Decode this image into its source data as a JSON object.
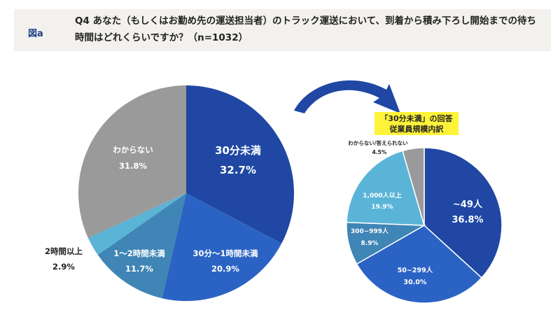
{
  "header": {
    "figure_label": "図a",
    "question": "Q4 あなた（もしくはお勤め先の運送担当者）のトラック運送において、到着から積み下ろし開始までの待ち時間はどれくらいですか？（n=1032）"
  },
  "callout": {
    "line1": "「30分未満」の回答",
    "line2": "従業員規模内訳"
  },
  "chart_data": [
    {
      "type": "pie",
      "title": "到着から積み下ろし開始までの待ち時間 (n=1032)",
      "start_angle": "12 o'clock, clockwise",
      "slices": [
        {
          "label": "30分未満",
          "value": 32.7,
          "value_label": "32.7%",
          "color": "#1f47a3"
        },
        {
          "label": "30分〜1時間未満",
          "value": 20.9,
          "value_label": "20.9%",
          "color": "#2b63c4"
        },
        {
          "label": "1〜2時間未満",
          "value": 11.7,
          "value_label": "11.7%",
          "color": "#3f85b5"
        },
        {
          "label": "2時間以上",
          "value": 2.9,
          "value_label": "2.9%",
          "color": "#5bb3d6"
        },
        {
          "label": "わからない",
          "value": 31.8,
          "value_label": "31.8%",
          "color": "#9a9a9a"
        }
      ]
    },
    {
      "type": "pie",
      "title": "「30分未満」の回答 従業員規模内訳",
      "start_angle": "12 o'clock, clockwise",
      "slices": [
        {
          "label": "~49人",
          "value": 36.8,
          "value_label": "36.8%",
          "color": "#1f47a3"
        },
        {
          "label": "50~299人",
          "value": 30.0,
          "value_label": "30.0%",
          "color": "#2b63c4"
        },
        {
          "label": "300~999人",
          "value": 8.9,
          "value_label": "8.9%",
          "color": "#3f85b5"
        },
        {
          "label": "1,000人以上",
          "value": 19.9,
          "value_label": "19.9%",
          "color": "#5ab4d8"
        },
        {
          "label": "わからない/答えられない",
          "value": 4.5,
          "value_label": "4.5%",
          "color": "#9a9a9a"
        }
      ]
    }
  ],
  "arrow": {
    "color": "#1f47a3",
    "meaning": "drill-down from 30分未満"
  }
}
